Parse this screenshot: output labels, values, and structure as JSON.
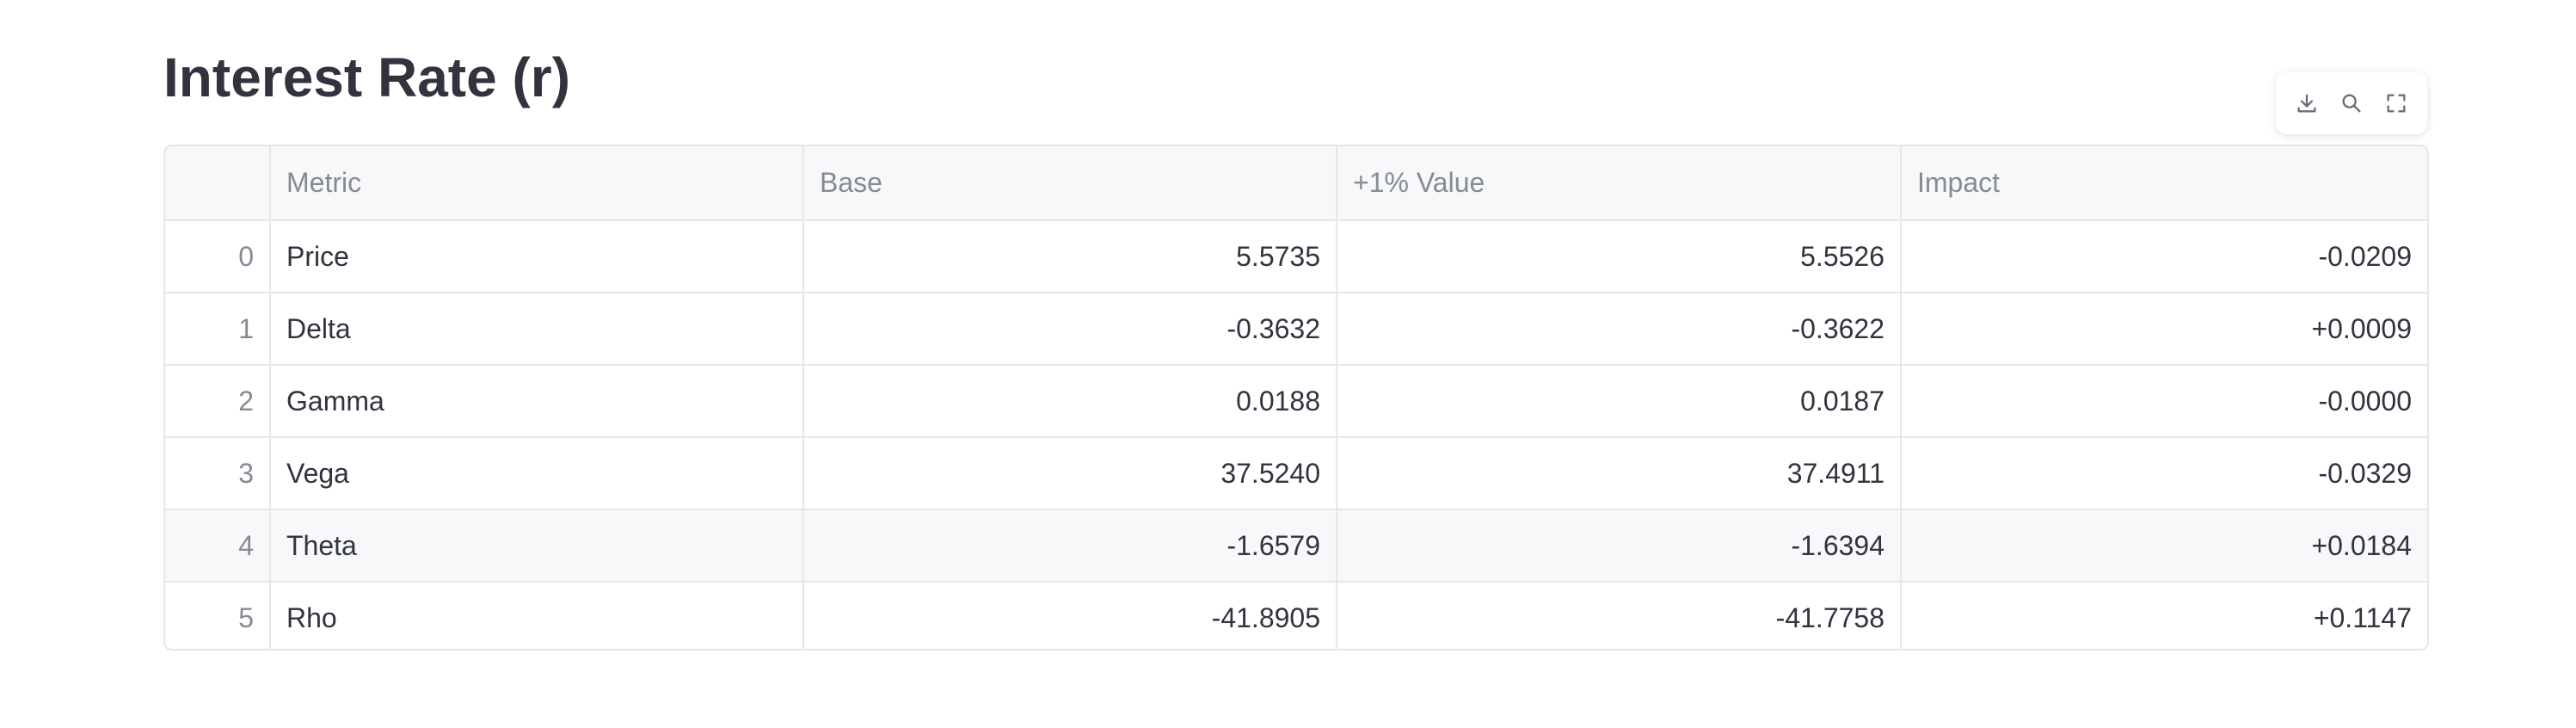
{
  "heading": "Interest Rate (r)",
  "toolbar": {
    "icons": [
      "download-icon",
      "search-icon",
      "fullscreen-icon"
    ]
  },
  "table": {
    "columns": [
      "",
      "Metric",
      "Base",
      "+1% Value",
      "Impact"
    ],
    "rows": [
      {
        "index": "0",
        "metric": "Price",
        "base": "5.5735",
        "plus": "5.5526",
        "impact": "-0.0209"
      },
      {
        "index": "1",
        "metric": "Delta",
        "base": "-0.3632",
        "plus": "-0.3622",
        "impact": "+0.0009"
      },
      {
        "index": "2",
        "metric": "Gamma",
        "base": "0.0188",
        "plus": "0.0187",
        "impact": "-0.0000"
      },
      {
        "index": "3",
        "metric": "Vega",
        "base": "37.5240",
        "plus": "37.4911",
        "impact": "-0.0329"
      },
      {
        "index": "4",
        "metric": "Theta",
        "base": "-1.6579",
        "plus": "-1.6394",
        "impact": "+0.0184"
      },
      {
        "index": "5",
        "metric": "Rho",
        "base": "-41.8905",
        "plus": "-41.7758",
        "impact": "+0.1147"
      }
    ]
  },
  "colors": {
    "text": "#31333f",
    "muted": "#878a94",
    "border": "#e6e7eb",
    "header_bg": "#f7f8fa"
  }
}
